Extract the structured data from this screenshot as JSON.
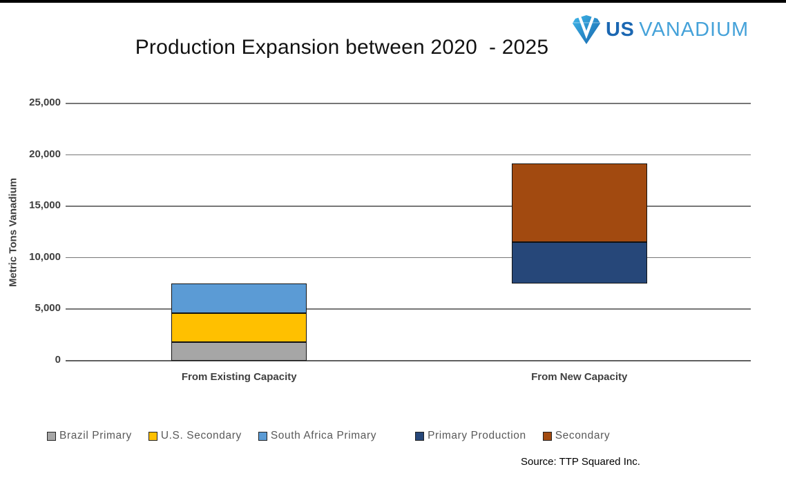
{
  "logo": {
    "us": "US",
    "vanadium": "VANADIUM",
    "icon": "vanadium-shield-icon",
    "us_color": "#1b67b2",
    "vanadium_color": "#45a2d9"
  },
  "style": {
    "top_rule_color": "#000000",
    "gridline_color": "#767676",
    "axis_line_color": "#5e5e5e",
    "tick_label_color": "#3f3f3f",
    "legend_label_color": "#595959"
  },
  "chart_data": {
    "type": "bar",
    "subtype": "stacked-floating",
    "title": "Production Expansion between 2020  - 2025",
    "xlabel": "",
    "ylabel": "Metric Tons Vanadium",
    "ylim": [
      0,
      25000
    ],
    "ytick_interval": 5000,
    "yticks": [
      "0",
      "5,000",
      "10,000",
      "15,000",
      "20,000",
      "25,000"
    ],
    "grid": "horizontal",
    "categories": [
      "From Existing Capacity",
      "From New Capacity"
    ],
    "bars": [
      {
        "category": "From Existing Capacity",
        "base": 0,
        "segments": [
          {
            "name": "Brazil Primary",
            "value": 1800,
            "color": "#A6A6A6"
          },
          {
            "name": "U.S. Secondary",
            "value": 2800,
            "color": "#FFC000"
          },
          {
            "name": "South Africa Primary",
            "value": 2900,
            "color": "#5B9BD5"
          }
        ],
        "total_top": 7500
      },
      {
        "category": "From New Capacity",
        "base": 7500,
        "segments": [
          {
            "name": "Primary Production",
            "value": 4000,
            "color": "#264779"
          },
          {
            "name": "Secondary",
            "value": 7700,
            "color": "#A24A10"
          }
        ],
        "total_top": 19200
      }
    ],
    "legend": {
      "position": "bottom",
      "groups": [
        {
          "items": [
            {
              "label": "Brazil Primary",
              "color": "#A6A6A6"
            },
            {
              "label": "U.S. Secondary",
              "color": "#FFC000"
            },
            {
              "label": "South Africa Primary",
              "color": "#5B9BD5"
            }
          ]
        },
        {
          "items": [
            {
              "label": "Primary Production",
              "color": "#264779"
            },
            {
              "label": "Secondary",
              "color": "#A24A10"
            }
          ]
        }
      ]
    },
    "source": "Source: TTP Squared Inc."
  }
}
